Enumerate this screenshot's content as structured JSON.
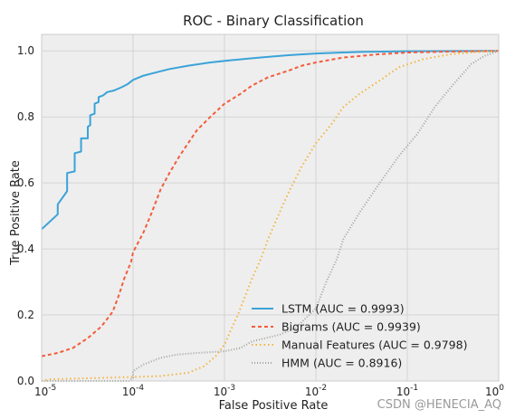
{
  "chart_data": {
    "type": "line",
    "title": "ROC - Binary Classification",
    "xlabel": "False Positive Rate",
    "ylabel": "True Positive Rate",
    "xscale": "log",
    "xlim": [
      1e-05,
      1
    ],
    "ylim": [
      0,
      1.05
    ],
    "grid": true,
    "legend_position": "lower-right",
    "x_ticks": [
      {
        "value": 1e-05,
        "base": "10",
        "exp": "-5"
      },
      {
        "value": 0.0001,
        "base": "10",
        "exp": "-4"
      },
      {
        "value": 0.001,
        "base": "10",
        "exp": "-3"
      },
      {
        "value": 0.01,
        "base": "10",
        "exp": "-2"
      },
      {
        "value": 0.1,
        "base": "10",
        "exp": "-1"
      },
      {
        "value": 1,
        "base": "10",
        "exp": "0"
      }
    ],
    "y_ticks": [
      {
        "value": 0.0,
        "label": "0.0"
      },
      {
        "value": 0.2,
        "label": "0.2"
      },
      {
        "value": 0.4,
        "label": "0.4"
      },
      {
        "value": 0.6,
        "label": "0.6"
      },
      {
        "value": 0.8,
        "label": "0.8"
      },
      {
        "value": 1.0,
        "label": "1.0"
      }
    ],
    "series": [
      {
        "name": "LSTM (AUC = 0.9993)",
        "color": "#3ba3d8",
        "dash": "solid",
        "points": [
          [
            1e-05,
            0.46
          ],
          [
            1.5e-05,
            0.505
          ],
          [
            1.5e-05,
            0.535
          ],
          [
            1.9e-05,
            0.575
          ],
          [
            1.9e-05,
            0.63
          ],
          [
            2.3e-05,
            0.635
          ],
          [
            2.3e-05,
            0.69
          ],
          [
            2.7e-05,
            0.695
          ],
          [
            2.7e-05,
            0.735
          ],
          [
            3.2e-05,
            0.735
          ],
          [
            3.2e-05,
            0.77
          ],
          [
            3.4e-05,
            0.775
          ],
          [
            3.4e-05,
            0.805
          ],
          [
            3.8e-05,
            0.81
          ],
          [
            3.8e-05,
            0.84
          ],
          [
            4.2e-05,
            0.845
          ],
          [
            4.2e-05,
            0.86
          ],
          [
            4.7e-05,
            0.865
          ],
          [
            5.2e-05,
            0.875
          ],
          [
            6.2e-05,
            0.88
          ],
          [
            7.5e-05,
            0.89
          ],
          [
            8.8e-05,
            0.9
          ],
          [
            0.0001,
            0.912
          ],
          [
            0.00013,
            0.925
          ],
          [
            0.00018,
            0.935
          ],
          [
            0.00025,
            0.945
          ],
          [
            0.0004,
            0.955
          ],
          [
            0.0007,
            0.965
          ],
          [
            0.0012,
            0.972
          ],
          [
            0.0025,
            0.98
          ],
          [
            0.005,
            0.987
          ],
          [
            0.01,
            0.992
          ],
          [
            0.03,
            0.997
          ],
          [
            0.1,
            0.999
          ],
          [
            1,
            1.0
          ]
        ]
      },
      {
        "name": "Bigrams (AUC = 0.9939)",
        "color": "#f55b3a",
        "dash": "4,3",
        "points": [
          [
            1e-05,
            0.075
          ],
          [
            1.5e-05,
            0.085
          ],
          [
            2.2e-05,
            0.1
          ],
          [
            3.2e-05,
            0.13
          ],
          [
            4.5e-05,
            0.165
          ],
          [
            6e-05,
            0.21
          ],
          [
            7e-05,
            0.26
          ],
          [
            8e-05,
            0.31
          ],
          [
            9.5e-05,
            0.36
          ],
          [
            0.0001,
            0.39
          ],
          [
            0.00013,
            0.45
          ],
          [
            0.00016,
            0.51
          ],
          [
            0.0002,
            0.58
          ],
          [
            0.00025,
            0.63
          ],
          [
            0.00032,
            0.68
          ],
          [
            0.0004,
            0.72
          ],
          [
            0.0005,
            0.76
          ],
          [
            0.0007,
            0.8
          ],
          [
            0.001,
            0.84
          ],
          [
            0.0015,
            0.87
          ],
          [
            0.002,
            0.895
          ],
          [
            0.003,
            0.92
          ],
          [
            0.005,
            0.94
          ],
          [
            0.007,
            0.955
          ],
          [
            0.01,
            0.965
          ],
          [
            0.02,
            0.98
          ],
          [
            0.05,
            0.99
          ],
          [
            0.1,
            0.995
          ],
          [
            0.3,
            0.998
          ],
          [
            1,
            1.0
          ]
        ]
      },
      {
        "name": "Manual Features (AUC = 0.9798)",
        "color": "#f5b43c",
        "dash": "1.5,3",
        "points": [
          [
            1e-05,
            0.0
          ],
          [
            1.2e-05,
            0.005
          ],
          [
            3e-05,
            0.008
          ],
          [
            0.0001,
            0.012
          ],
          [
            0.0002,
            0.015
          ],
          [
            0.0004,
            0.025
          ],
          [
            0.0006,
            0.045
          ],
          [
            0.0008,
            0.075
          ],
          [
            0.001,
            0.11
          ],
          [
            0.0012,
            0.16
          ],
          [
            0.0014,
            0.2
          ],
          [
            0.0017,
            0.26
          ],
          [
            0.002,
            0.31
          ],
          [
            0.0025,
            0.37
          ],
          [
            0.003,
            0.43
          ],
          [
            0.004,
            0.51
          ],
          [
            0.005,
            0.57
          ],
          [
            0.007,
            0.65
          ],
          [
            0.01,
            0.72
          ],
          [
            0.015,
            0.78
          ],
          [
            0.02,
            0.83
          ],
          [
            0.03,
            0.87
          ],
          [
            0.05,
            0.91
          ],
          [
            0.08,
            0.95
          ],
          [
            0.15,
            0.975
          ],
          [
            0.3,
            0.99
          ],
          [
            0.6,
            0.997
          ],
          [
            1,
            1.0
          ]
        ]
      },
      {
        "name": "HMM (AUC = 0.8916)",
        "color": "#9fa59d",
        "dash": "1,2",
        "points": [
          [
            1e-05,
            0.0
          ],
          [
            9e-05,
            0.0
          ],
          [
            0.0001,
            0.01
          ],
          [
            0.0001,
            0.03
          ],
          [
            0.00013,
            0.05
          ],
          [
            0.0002,
            0.07
          ],
          [
            0.0003,
            0.08
          ],
          [
            0.0005,
            0.085
          ],
          [
            0.001,
            0.09
          ],
          [
            0.0015,
            0.1
          ],
          [
            0.002,
            0.12
          ],
          [
            0.004,
            0.14
          ],
          [
            0.006,
            0.16
          ],
          [
            0.01,
            0.22
          ],
          [
            0.013,
            0.3
          ],
          [
            0.017,
            0.37
          ],
          [
            0.02,
            0.43
          ],
          [
            0.03,
            0.51
          ],
          [
            0.05,
            0.6
          ],
          [
            0.08,
            0.68
          ],
          [
            0.13,
            0.75
          ],
          [
            0.2,
            0.83
          ],
          [
            0.3,
            0.89
          ],
          [
            0.5,
            0.96
          ],
          [
            0.7,
            0.985
          ],
          [
            1,
            1.0
          ]
        ]
      }
    ]
  },
  "watermark": "CSDN @HENECIA_AQ"
}
